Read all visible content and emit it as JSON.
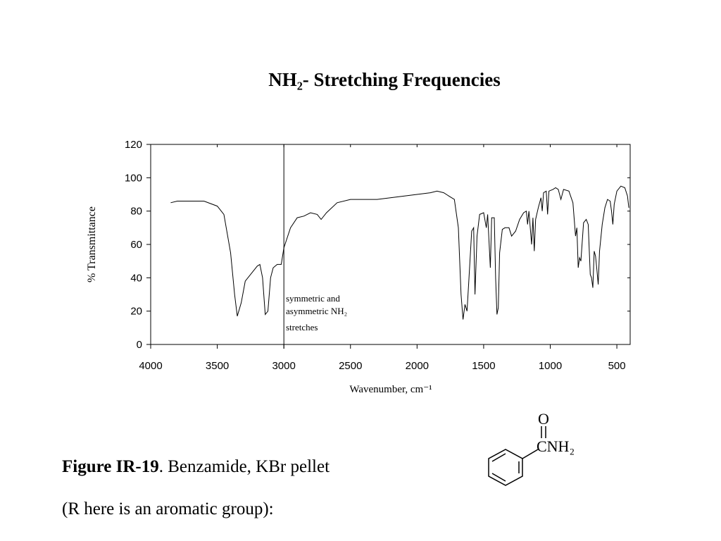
{
  "chart_data": {
    "type": "line",
    "title": "NH₂- Stretching Frequencies",
    "x_label": "Wavenumber, cm⁻¹",
    "y_label": "% Transmittance",
    "annotations": [
      "symmetric and",
      "asymmetric NH₂",
      "stretches"
    ],
    "vline": 3000,
    "xlim": [
      4000,
      400
    ],
    "xticks": [
      4000,
      3500,
      3000,
      2500,
      2000,
      1500,
      1000,
      500
    ],
    "ylim": [
      0,
      120
    ],
    "yticks": [
      0,
      20,
      40,
      60,
      80,
      100,
      120
    ],
    "x": [
      3850,
      3800,
      3600,
      3500,
      3450,
      3400,
      3370,
      3350,
      3320,
      3290,
      3250,
      3200,
      3180,
      3160,
      3140,
      3120,
      3100,
      3080,
      3050,
      3020,
      3000,
      2950,
      2900,
      2850,
      2800,
      2750,
      2720,
      2680,
      2600,
      2500,
      2300,
      2100,
      2000,
      1900,
      1850,
      1800,
      1760,
      1720,
      1690,
      1670,
      1655,
      1640,
      1625,
      1610,
      1590,
      1575,
      1565,
      1550,
      1530,
      1500,
      1480,
      1470,
      1450,
      1440,
      1420,
      1410,
      1400,
      1390,
      1380,
      1360,
      1340,
      1310,
      1290,
      1260,
      1230,
      1200,
      1180,
      1170,
      1160,
      1140,
      1130,
      1120,
      1110,
      1090,
      1070,
      1060,
      1050,
      1030,
      1020,
      1010,
      980,
      960,
      940,
      920,
      900,
      860,
      830,
      810,
      800,
      790,
      780,
      770,
      750,
      730,
      715,
      700,
      690,
      680,
      670,
      660,
      650,
      640,
      630,
      610,
      590,
      570,
      550,
      540,
      530,
      520,
      500,
      470,
      440,
      420,
      410
    ],
    "series": [
      {
        "color": "#000000",
        "values": [
          85,
          86,
          86,
          83,
          78,
          55,
          30,
          17,
          25,
          38,
          42,
          47,
          48,
          40,
          18,
          20,
          40,
          46,
          48,
          48,
          58,
          70,
          76,
          77,
          79,
          78,
          75,
          79,
          85,
          87,
          87,
          89,
          90,
          91,
          92,
          91,
          89,
          87,
          70,
          30,
          15,
          24,
          20,
          40,
          68,
          70,
          30,
          65,
          78,
          79,
          70,
          78,
          46,
          76,
          76,
          40,
          18,
          22,
          55,
          69,
          70,
          70,
          65,
          68,
          75,
          79,
          80,
          72,
          80,
          60,
          76,
          56,
          75,
          82,
          88,
          80,
          91,
          92,
          78,
          92,
          93,
          94,
          93,
          87,
          93,
          92,
          85,
          65,
          70,
          46,
          52,
          50,
          73,
          75,
          72,
          42,
          40,
          34,
          56,
          53,
          45,
          36,
          56,
          72,
          82,
          87,
          86,
          80,
          72,
          84,
          92,
          95,
          94,
          89,
          82
        ]
      }
    ]
  },
  "caption": {
    "label": "Figure IR-19",
    "text": ".  Benzamide, KBr pellet",
    "note": "(R here is an aromatic group):"
  },
  "structure": {
    "oxygen": "O",
    "group": "CNH₂"
  }
}
